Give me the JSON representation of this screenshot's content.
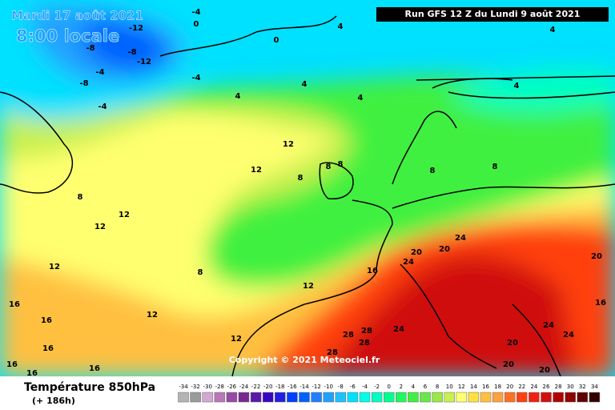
{
  "header": {
    "date": "Mardi 17 août 2021",
    "time": "8:00 locale",
    "run": "Run GFS 12 Z du Lundi 9 août 2021",
    "copyright": "Copyright © 2021 Meteociel.fr"
  },
  "footer": {
    "title": "Température 850hPa",
    "lead": "(+ 186h)"
  },
  "map": {
    "contour_labels": [
      -12,
      -8,
      -12,
      -8,
      -8,
      -4,
      -4,
      -4,
      0,
      0,
      -4,
      4,
      4,
      4,
      4,
      4,
      12,
      12,
      8,
      8,
      12,
      12,
      12,
      8,
      12,
      16,
      12,
      12,
      16,
      16,
      16,
      16,
      16,
      16,
      24,
      20,
      24,
      20,
      28,
      28,
      24,
      28,
      28,
      24,
      24,
      20,
      16,
      20,
      20,
      20,
      8,
      8,
      8,
      8,
      4
    ]
  },
  "legend": {
    "steps": [
      {
        "value": -34,
        "color": "#b4b4b4"
      },
      {
        "value": -32,
        "color": "#9a9a9a"
      },
      {
        "value": -30,
        "color": "#d2a8d2"
      },
      {
        "value": -28,
        "color": "#b878b8"
      },
      {
        "value": -26,
        "color": "#9848a8"
      },
      {
        "value": -24,
        "color": "#782890"
      },
      {
        "value": -22,
        "color": "#5818a8"
      },
      {
        "value": -20,
        "color": "#3808c0"
      },
      {
        "value": -18,
        "color": "#2020e0"
      },
      {
        "value": -16,
        "color": "#0040ff"
      },
      {
        "value": -14,
        "color": "#0062ff"
      },
      {
        "value": -12,
        "color": "#2080ff"
      },
      {
        "value": -10,
        "color": "#20a0ff"
      },
      {
        "value": -8,
        "color": "#20c0ff"
      },
      {
        "value": -6,
        "color": "#00e0ff"
      },
      {
        "value": -4,
        "color": "#00ffe8"
      },
      {
        "value": -2,
        "color": "#00ffc0"
      },
      {
        "value": 0,
        "color": "#00ff90"
      },
      {
        "value": 2,
        "color": "#20f860"
      },
      {
        "value": 4,
        "color": "#40f040"
      },
      {
        "value": 6,
        "color": "#68e848"
      },
      {
        "value": 8,
        "color": "#98e848"
      },
      {
        "value": 10,
        "color": "#c8f050"
      },
      {
        "value": 12,
        "color": "#ffff70"
      },
      {
        "value": 14,
        "color": "#ffe040"
      },
      {
        "value": 16,
        "color": "#ffc040"
      },
      {
        "value": 18,
        "color": "#ffa040"
      },
      {
        "value": 20,
        "color": "#ff7020"
      },
      {
        "value": 22,
        "color": "#ff4010"
      },
      {
        "value": 24,
        "color": "#f02010"
      },
      {
        "value": 26,
        "color": "#d01010"
      },
      {
        "value": 28,
        "color": "#b00000"
      },
      {
        "value": 30,
        "color": "#900000"
      },
      {
        "value": 32,
        "color": "#600000"
      },
      {
        "value": 34,
        "color": "#300000"
      }
    ]
  }
}
